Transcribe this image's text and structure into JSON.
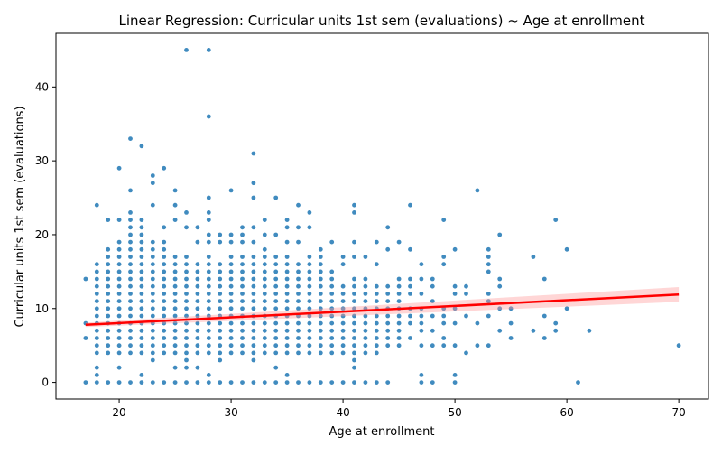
{
  "chart_data": {
    "type": "scatter",
    "title": "Linear Regression: Curricular units 1st sem (evaluations) ~ Age at enrollment",
    "xlabel": "Age at enrollment",
    "ylabel": "Curricular units 1st sem (evaluations)",
    "xlim": [
      14.35,
      72.65
    ],
    "ylim": [
      -2.25,
      47.25
    ],
    "xticks": [
      20,
      30,
      40,
      50,
      60,
      70
    ],
    "yticks": [
      0,
      10,
      20,
      30,
      40
    ],
    "grid": false,
    "legend": "none",
    "point_color": "#1f77b4",
    "regression_color": "#ff0000",
    "band_color": "#ff9999",
    "regression": {
      "x": [
        17,
        70
      ],
      "y": [
        7.8,
        11.9
      ],
      "ci_low": [
        7.5,
        10.9
      ],
      "ci_high": [
        8.1,
        12.9
      ]
    },
    "points": {
      "dense_columns": [
        {
          "x": 18,
          "ymin": 4,
          "ymax": 16,
          "extra": [
            0,
            1,
            2,
            24
          ]
        },
        {
          "x": 19,
          "ymin": 4,
          "ymax": 18,
          "extra": [
            0,
            22
          ]
        },
        {
          "x": 20,
          "ymin": 4,
          "ymax": 19,
          "extra": [
            0,
            2,
            22,
            29
          ]
        },
        {
          "x": 21,
          "ymin": 4,
          "ymax": 23,
          "extra": [
            0,
            26,
            33
          ]
        },
        {
          "x": 22,
          "ymin": 4,
          "ymax": 22,
          "extra": [
            0,
            1,
            32
          ]
        },
        {
          "x": 23,
          "ymin": 4,
          "ymax": 19,
          "extra": [
            0,
            3,
            24,
            27,
            28
          ]
        },
        {
          "x": 24,
          "ymin": 4,
          "ymax": 19,
          "extra": [
            0,
            21,
            29
          ]
        },
        {
          "x": 25,
          "ymin": 4,
          "ymax": 17,
          "extra": [
            0,
            2,
            22,
            24,
            26
          ]
        },
        {
          "x": 26,
          "ymin": 3,
          "ymax": 17,
          "extra": [
            0,
            2,
            21,
            23,
            45
          ]
        },
        {
          "x": 27,
          "ymin": 4,
          "ymax": 16,
          "extra": [
            0,
            2,
            19,
            21
          ]
        },
        {
          "x": 28,
          "ymin": 4,
          "ymax": 17,
          "extra": [
            0,
            1,
            19,
            20,
            22,
            23,
            25,
            36,
            45
          ]
        },
        {
          "x": 29,
          "ymin": 4,
          "ymax": 16,
          "extra": [
            0,
            3,
            19,
            20
          ]
        },
        {
          "x": 30,
          "ymin": 4,
          "ymax": 17,
          "extra": [
            0,
            19,
            20,
            26
          ]
        },
        {
          "x": 31,
          "ymin": 4,
          "ymax": 17,
          "extra": [
            0,
            19,
            20,
            21
          ]
        },
        {
          "x": 32,
          "ymin": 4,
          "ymax": 17,
          "extra": [
            0,
            3,
            19,
            21,
            25,
            27,
            31
          ]
        },
        {
          "x": 33,
          "ymin": 4,
          "ymax": 18,
          "extra": [
            0,
            20,
            22
          ]
        },
        {
          "x": 34,
          "ymin": 4,
          "ymax": 17,
          "extra": [
            0,
            2,
            20,
            25
          ]
        },
        {
          "x": 35,
          "ymin": 4,
          "ymax": 17,
          "extra": [
            0,
            1,
            19,
            21,
            22
          ]
        },
        {
          "x": 36,
          "ymin": 4,
          "ymax": 16,
          "extra": [
            0,
            19,
            21,
            24
          ]
        },
        {
          "x": 37,
          "ymin": 4,
          "ymax": 16,
          "extra": [
            0,
            17,
            21,
            23
          ]
        },
        {
          "x": 38,
          "ymin": 4,
          "ymax": 16,
          "extra": [
            0,
            17,
            18
          ]
        },
        {
          "x": 39,
          "ymin": 4,
          "ymax": 15,
          "extra": [
            0,
            19
          ]
        },
        {
          "x": 40,
          "ymin": 4,
          "ymax": 13,
          "extra": [
            0,
            16,
            17
          ]
        },
        {
          "x": 41,
          "ymin": 4,
          "ymax": 14,
          "extra": [
            0,
            2,
            3,
            17,
            19,
            23,
            24
          ]
        },
        {
          "x": 42,
          "ymin": 4,
          "ymax": 13,
          "extra": [
            0,
            14,
            17
          ]
        },
        {
          "x": 43,
          "ymin": 4,
          "ymax": 13,
          "extra": [
            0,
            16,
            19
          ]
        },
        {
          "x": 44,
          "ymin": 5,
          "ymax": 13,
          "extra": [
            0,
            18,
            21
          ]
        },
        {
          "x": 45,
          "ymin": 5,
          "ymax": 13,
          "extra": [
            14,
            19
          ]
        }
      ],
      "sparse": [
        [
          17,
          0
        ],
        [
          17,
          6
        ],
        [
          17,
          8
        ],
        [
          17,
          14
        ],
        [
          46,
          6
        ],
        [
          46,
          8
        ],
        [
          46,
          9
        ],
        [
          46,
          10
        ],
        [
          46,
          12
        ],
        [
          46,
          13
        ],
        [
          46,
          14
        ],
        [
          46,
          18
        ],
        [
          46,
          24
        ],
        [
          47,
          0
        ],
        [
          47,
          1
        ],
        [
          47,
          5
        ],
        [
          47,
          7
        ],
        [
          47,
          8
        ],
        [
          47,
          9
        ],
        [
          47,
          10
        ],
        [
          47,
          12
        ],
        [
          47,
          14
        ],
        [
          47,
          16
        ],
        [
          48,
          0
        ],
        [
          48,
          5
        ],
        [
          48,
          7
        ],
        [
          48,
          9
        ],
        [
          48,
          11
        ],
        [
          48,
          13
        ],
        [
          48,
          14
        ],
        [
          49,
          5
        ],
        [
          49,
          6
        ],
        [
          49,
          8
        ],
        [
          49,
          9
        ],
        [
          49,
          10
        ],
        [
          49,
          16
        ],
        [
          49,
          17
        ],
        [
          49,
          22
        ],
        [
          50,
          0
        ],
        [
          50,
          1
        ],
        [
          50,
          5
        ],
        [
          50,
          8
        ],
        [
          50,
          10
        ],
        [
          50,
          12
        ],
        [
          50,
          13
        ],
        [
          50,
          18
        ],
        [
          51,
          4
        ],
        [
          51,
          9
        ],
        [
          51,
          12
        ],
        [
          51,
          13
        ],
        [
          52,
          5
        ],
        [
          52,
          8
        ],
        [
          52,
          26
        ],
        [
          53,
          5
        ],
        [
          53,
          9
        ],
        [
          53,
          11
        ],
        [
          53,
          12
        ],
        [
          53,
          15
        ],
        [
          53,
          16
        ],
        [
          53,
          17
        ],
        [
          53,
          18
        ],
        [
          54,
          7
        ],
        [
          54,
          10
        ],
        [
          54,
          13
        ],
        [
          54,
          14
        ],
        [
          54,
          20
        ],
        [
          55,
          6
        ],
        [
          55,
          8
        ],
        [
          55,
          10
        ],
        [
          57,
          7
        ],
        [
          57,
          17
        ],
        [
          58,
          6
        ],
        [
          58,
          9
        ],
        [
          58,
          14
        ],
        [
          59,
          7
        ],
        [
          59,
          8
        ],
        [
          59,
          22
        ],
        [
          60,
          10
        ],
        [
          60,
          18
        ],
        [
          61,
          0
        ],
        [
          62,
          7
        ],
        [
          70,
          5
        ]
      ]
    }
  }
}
